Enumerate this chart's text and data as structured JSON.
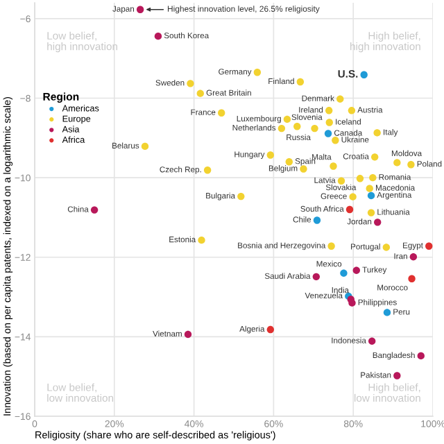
{
  "chart_data": {
    "type": "scatter",
    "xlabel": "Religiosity (share who are self-described as 'religious')",
    "ylabel": "Innovation (based on per capita patents, indexed on a logarithmic scale)",
    "legend_title": "Region",
    "legend": "left",
    "grid": true,
    "marker": "circle",
    "xlim": [
      0,
      100
    ],
    "xticks": [
      {
        "value": 0,
        "label": "0"
      },
      {
        "value": 20,
        "label": "20%"
      },
      {
        "value": 40,
        "label": "40%"
      },
      {
        "value": 60,
        "label": "60%"
      },
      {
        "value": 80,
        "label": "80%"
      },
      {
        "value": 100,
        "label": "100%"
      }
    ],
    "ylim": [
      -16,
      -5.6
    ],
    "yticks": [
      {
        "value": -16,
        "label": "−16"
      },
      {
        "value": -14,
        "label": "−14"
      },
      {
        "value": -12,
        "label": "−12"
      },
      {
        "value": -10,
        "label": "−10"
      },
      {
        "value": -8,
        "label": "−8"
      },
      {
        "value": -6,
        "label": "−6"
      }
    ],
    "series": [
      {
        "name": "Americas",
        "color": "#1f9bd7",
        "x": [
          82.7,
          73.7,
          84.5,
          70.9,
          77.6,
          78.8,
          88.5
        ],
        "values": [
          -7.41,
          -8.89,
          -10.45,
          -11.07,
          -12.4,
          -12.98,
          -13.39
        ]
      },
      {
        "name": "Europe",
        "color": "#f2d230",
        "x": [
          55.9,
          39.1,
          41.6,
          66.7,
          46.9,
          76.7,
          73.9,
          79.6,
          63.4,
          65.9,
          74.0,
          62.0,
          70.3,
          75.5,
          86.0,
          27.7,
          59.2,
          63.9,
          67.5,
          75.0,
          85.4,
          91.0,
          94.5,
          43.4,
          77.0,
          81.7,
          84.9,
          84.1,
          51.8,
          79.9,
          84.5,
          41.9,
          74.5,
          88.3
        ],
        "values": [
          -7.35,
          -7.63,
          -7.88,
          -7.59,
          -8.37,
          -8.02,
          -8.31,
          -8.31,
          -8.53,
          -8.71,
          -8.61,
          -8.76,
          -8.76,
          -9.06,
          -8.87,
          -9.21,
          -9.43,
          -9.6,
          -9.78,
          -9.71,
          -9.48,
          -9.62,
          -9.67,
          -9.81,
          -10.08,
          -10.02,
          -10.0,
          -10.27,
          -10.47,
          -10.48,
          -10.88,
          -11.57,
          -11.72,
          -11.75
        ]
      },
      {
        "name": "Asia",
        "color": "#b8185a",
        "x": [
          26.5,
          31.0,
          86.1,
          15.0,
          95.1,
          80.8,
          70.7,
          79.4,
          79.7,
          38.5,
          84.7,
          97.0,
          91.0
        ],
        "values": [
          -5.77,
          -6.44,
          -11.12,
          -10.81,
          -11.99,
          -12.33,
          -12.49,
          -13.06,
          -13.15,
          -13.94,
          -14.11,
          -14.48,
          -14.98
        ]
      },
      {
        "name": "Africa",
        "color": "#e0302f",
        "x": [
          79.1,
          99.0,
          94.7,
          59.2
        ],
        "values": [
          -10.8,
          -11.72,
          -12.54,
          -13.82
        ]
      }
    ],
    "annotations": [
      {
        "text": "Japan",
        "x": 26.5,
        "y": -5.77
      },
      {
        "text": "South Korea",
        "x": 31.0,
        "y": -6.44
      },
      {
        "text": "Germany",
        "x": 55.9,
        "y": -7.35
      },
      {
        "text": "Sweden",
        "x": 39.1,
        "y": -7.63
      },
      {
        "text": "Great Britain",
        "x": 41.6,
        "y": -7.88
      },
      {
        "text": "Finland",
        "x": 66.7,
        "y": -7.59
      },
      {
        "text": "U.S.",
        "x": 82.7,
        "y": -7.41
      },
      {
        "text": "France",
        "x": 46.9,
        "y": -8.37
      },
      {
        "text": "Denmark",
        "x": 76.7,
        "y": -8.02
      },
      {
        "text": "Ireland",
        "x": 73.9,
        "y": -8.31
      },
      {
        "text": "Austria",
        "x": 79.6,
        "y": -8.31
      },
      {
        "text": "Luxembourg",
        "x": 63.4,
        "y": -8.53
      },
      {
        "text": "Slovenia",
        "x": 65.9,
        "y": -8.71
      },
      {
        "text": "Iceland",
        "x": 74.0,
        "y": -8.61
      },
      {
        "text": "Netherlands",
        "x": 62.0,
        "y": -8.76
      },
      {
        "text": "Russia",
        "x": 70.3,
        "y": -8.76
      },
      {
        "text": "Canada",
        "x": 73.7,
        "y": -8.89
      },
      {
        "text": "Ukraine",
        "x": 75.5,
        "y": -9.06
      },
      {
        "text": "Italy",
        "x": 86.0,
        "y": -8.87
      },
      {
        "text": "Belarus",
        "x": 27.7,
        "y": -9.21
      },
      {
        "text": "Hungary",
        "x": 59.2,
        "y": -9.43
      },
      {
        "text": "Spain",
        "x": 63.9,
        "y": -9.6
      },
      {
        "text": "Belgium",
        "x": 67.5,
        "y": -9.78
      },
      {
        "text": "Malta",
        "x": 75.0,
        "y": -9.71
      },
      {
        "text": "Croatia",
        "x": 85.4,
        "y": -9.48
      },
      {
        "text": "Moldova",
        "x": 91.0,
        "y": -9.62
      },
      {
        "text": "Poland",
        "x": 94.5,
        "y": -9.67
      },
      {
        "text": "Czech Rep.",
        "x": 43.4,
        "y": -9.81
      },
      {
        "text": "Latvia",
        "x": 77.0,
        "y": -10.08
      },
      {
        "text": "Slovakia",
        "x": 81.7,
        "y": -10.02
      },
      {
        "text": "Romania",
        "x": 84.9,
        "y": -10.0
      },
      {
        "text": "Macedonia",
        "x": 84.1,
        "y": -10.27
      },
      {
        "text": "Argentina",
        "x": 84.5,
        "y": -10.45
      },
      {
        "text": "Bulgaria",
        "x": 51.8,
        "y": -10.47
      },
      {
        "text": "Greece",
        "x": 79.9,
        "y": -10.48
      },
      {
        "text": "South Africa",
        "x": 79.1,
        "y": -10.8
      },
      {
        "text": "Lithuania",
        "x": 84.5,
        "y": -10.88
      },
      {
        "text": "Chile",
        "x": 70.9,
        "y": -11.07
      },
      {
        "text": "Jordan",
        "x": 86.1,
        "y": -11.12
      },
      {
        "text": "China",
        "x": 15.0,
        "y": -10.81
      },
      {
        "text": "Estonia",
        "x": 41.9,
        "y": -11.57
      },
      {
        "text": "Bosnia and Herzegovina",
        "x": 74.5,
        "y": -11.72
      },
      {
        "text": "Portugal",
        "x": 88.3,
        "y": -11.75
      },
      {
        "text": "Egypt",
        "x": 99.0,
        "y": -11.72
      },
      {
        "text": "Iran",
        "x": 95.1,
        "y": -11.99
      },
      {
        "text": "Mexico",
        "x": 77.6,
        "y": -12.4
      },
      {
        "text": "Turkey",
        "x": 80.8,
        "y": -12.33
      },
      {
        "text": "Saudi Arabia",
        "x": 70.7,
        "y": -12.49
      },
      {
        "text": "Morocco",
        "x": 94.7,
        "y": -12.54
      },
      {
        "text": "Venezuela",
        "x": 78.8,
        "y": -12.98
      },
      {
        "text": "India",
        "x": 79.4,
        "y": -13.06
      },
      {
        "text": "Philippines",
        "x": 79.7,
        "y": -13.15
      },
      {
        "text": "Peru",
        "x": 88.5,
        "y": -13.39
      },
      {
        "text": "Algeria",
        "x": 59.2,
        "y": -13.82
      },
      {
        "text": "Indonesia",
        "x": 84.7,
        "y": -14.11
      },
      {
        "text": "Bangladesh",
        "x": 97.0,
        "y": -14.48
      },
      {
        "text": "Pakistan",
        "x": 91.0,
        "y": -14.98
      },
      {
        "text": "Vietnam",
        "x": 38.5,
        "y": -13.94
      },
      {
        "text": "Highest innovation level, 26.5% religiosity",
        "x": 26.5,
        "y": -5.77
      },
      "Low belief,\nhigh innovation",
      "High belief,\nhigh innovation",
      "Low belief,\nlow innovation",
      "High belief,\nlow innovation"
    ]
  }
}
